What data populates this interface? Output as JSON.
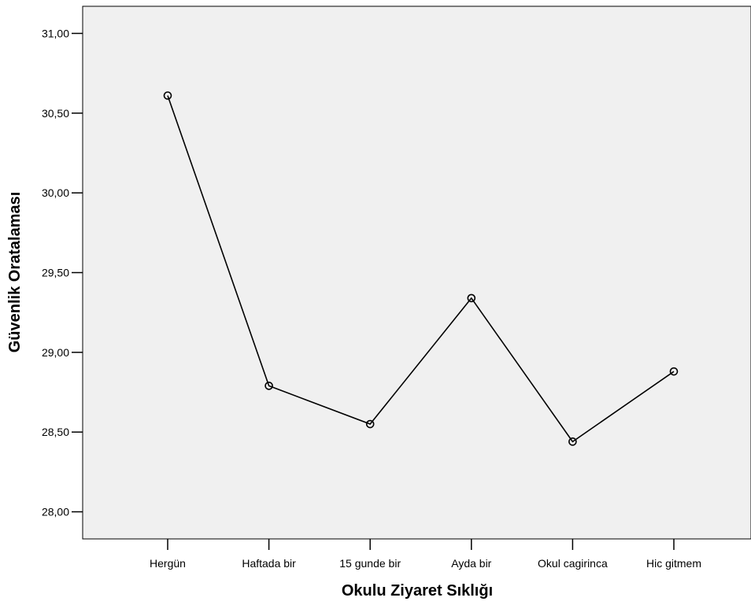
{
  "chart_data": {
    "type": "line",
    "title": "",
    "xlabel": "Okulu Ziyaret Sıklığı",
    "ylabel": "Güvenlik Oratalaması",
    "categories": [
      "Hergün",
      "Haftada bir",
      "15 gunde bir",
      "Ayda bir",
      "Okul cagirinca",
      "Hic gitmem"
    ],
    "series": [
      {
        "values": [
          30.61,
          28.79,
          28.55,
          29.34,
          28.44,
          28.88
        ]
      }
    ],
    "ylim": [
      27.83,
      31.17
    ],
    "yticks": [
      28.0,
      28.5,
      29.0,
      29.5,
      30.0,
      30.5,
      31.0
    ],
    "ytick_labels": [
      "28,00",
      "28,50",
      "29,00",
      "29,50",
      "30,00",
      "30,50",
      "31,00"
    ],
    "grid": false,
    "legend": "none",
    "colors": {
      "plot_background": "#f0f0f0",
      "line": "#000000",
      "axes": "#000000"
    },
    "marker": "open-circle"
  }
}
